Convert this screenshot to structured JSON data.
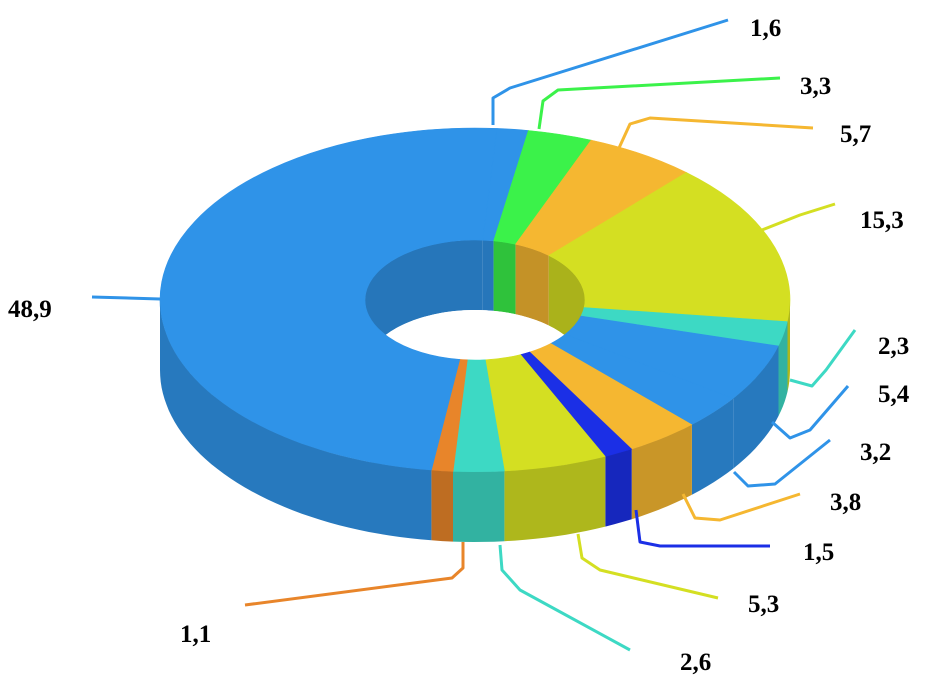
{
  "chart_data": {
    "type": "pie",
    "style": "3d-donut",
    "values": [
      "1,6",
      "3,3",
      "5,7",
      "15,3",
      "2,3",
      "5,4",
      "3,2",
      "3,8",
      "1,5",
      "5,3",
      "2,6",
      "1,1",
      "48,9"
    ],
    "numeric_values": [
      1.6,
      3.3,
      5.7,
      15.3,
      2.3,
      5.4,
      3.2,
      3.8,
      1.5,
      5.3,
      2.6,
      1.1,
      48.9
    ],
    "colors": [
      "#2f93e8",
      "#3bf24a",
      "#f5b731",
      "#d4df22",
      "#3dd9c4",
      "#2f93e8",
      "#2f93e8",
      "#f5b731",
      "#1b2fe6",
      "#d4df22",
      "#3dd9c4",
      "#e8852a",
      "#2f93e8"
    ],
    "legend": "none"
  }
}
